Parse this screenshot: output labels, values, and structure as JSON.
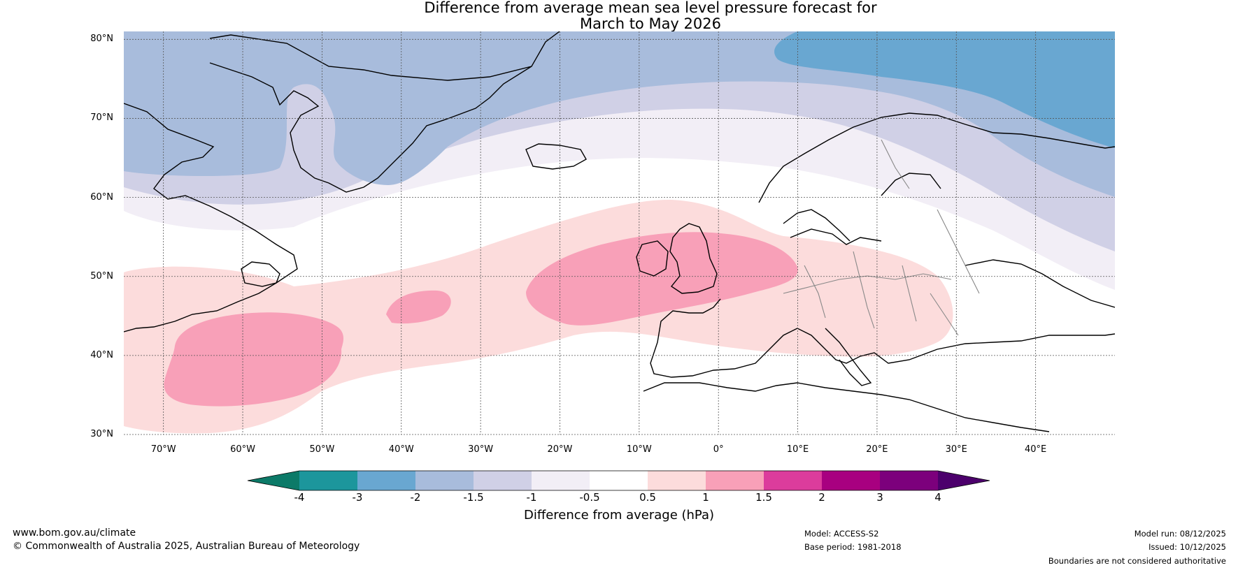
{
  "title": {
    "line1": "Difference from average mean sea level pressure forecast for",
    "line2": "March to May 2026"
  },
  "map": {
    "extent": {
      "lon_min": -75,
      "lon_max": 50,
      "lat_min": 30,
      "lat_max": 81
    },
    "lat_labels": [
      {
        "lat": 80,
        "text": "80°N"
      },
      {
        "lat": 70,
        "text": "70°N"
      },
      {
        "lat": 60,
        "text": "60°N"
      },
      {
        "lat": 50,
        "text": "50°N"
      },
      {
        "lat": 40,
        "text": "40°N"
      },
      {
        "lat": 30,
        "text": "30°N"
      }
    ],
    "lon_labels": [
      {
        "lon": -70,
        "text": "70°W"
      },
      {
        "lon": -60,
        "text": "60°W"
      },
      {
        "lon": -50,
        "text": "50°W"
      },
      {
        "lon": -40,
        "text": "40°W"
      },
      {
        "lon": -30,
        "text": "30°W"
      },
      {
        "lon": -20,
        "text": "20°W"
      },
      {
        "lon": -10,
        "text": "10°W"
      },
      {
        "lon": 0,
        "text": "0°"
      },
      {
        "lon": 10,
        "text": "10°E"
      },
      {
        "lon": 20,
        "text": "20°E"
      },
      {
        "lon": 30,
        "text": "30°E"
      },
      {
        "lon": 40,
        "text": "40°E"
      }
    ],
    "contour_regions": [
      {
        "range": "-2 to -1.5",
        "color": "#a8bcdc",
        "description": "Greenland / Arctic negative anomaly"
      },
      {
        "range": "-3 to -2",
        "color": "#69a7d1",
        "description": "Barents Sea negative anomaly"
      },
      {
        "range": "0.5 to 1",
        "color": "#fcdcdc",
        "description": "North Atlantic positive band"
      },
      {
        "range": "1 to 1.5",
        "color": "#f8a0b8",
        "description": "British Isles and western Atlantic positive centres"
      }
    ]
  },
  "colorbar": {
    "colors": [
      "#0c7a68",
      "#1c969c",
      "#69a7d1",
      "#a8bcdc",
      "#d0d0e6",
      "#f2eef6",
      "#ffffff",
      "#fcdcdc",
      "#f8a0b8",
      "#dc3c9c",
      "#a80080",
      "#7c007c",
      "#4c006c"
    ],
    "ticks": [
      "-4",
      "-3",
      "-2",
      "-1.5",
      "-1",
      "-0.5",
      "0.5",
      "1",
      "1.5",
      "2",
      "3",
      "4"
    ],
    "label": "Difference from average (hPa)"
  },
  "footer": {
    "website": "www.bom.gov.au/climate",
    "copyright": "© Commonwealth of Australia 2025, Australian Bureau of Meteorology",
    "model": "Model: ACCESS-S2",
    "base_period": "Base period: 1981-2018",
    "model_run": "Model run: 08/12/2025",
    "issued": "Issued: 10/12/2025",
    "disclaimer": "Boundaries are not considered authoritative"
  }
}
